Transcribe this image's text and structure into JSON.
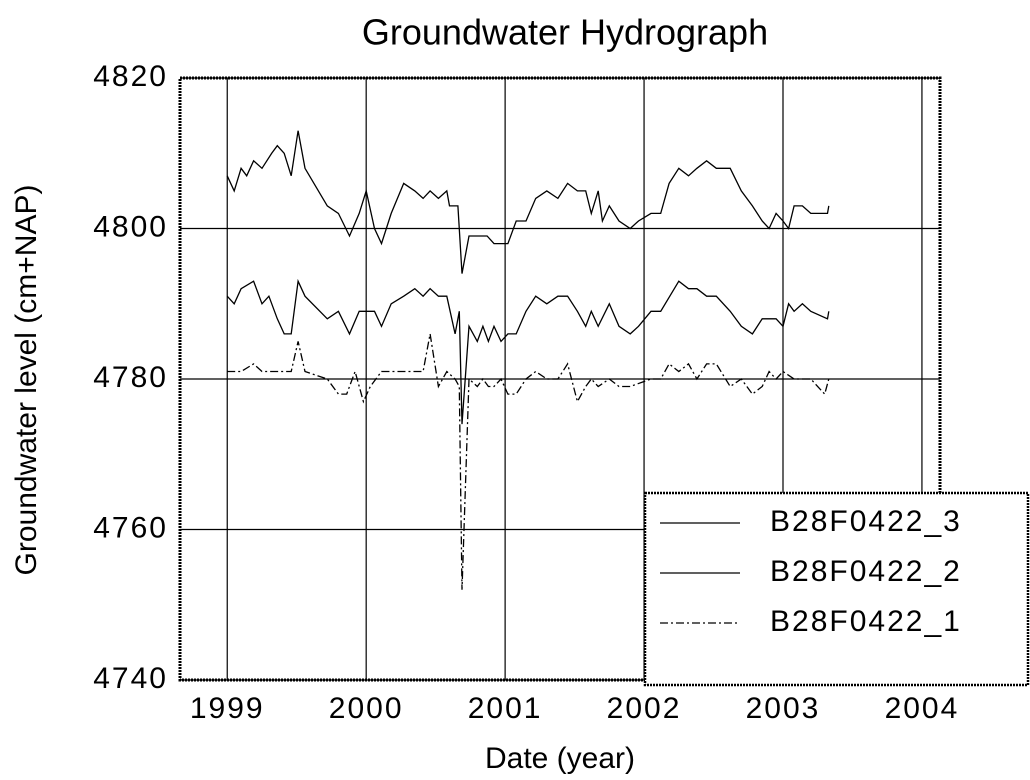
{
  "chart_data": {
    "type": "line",
    "title": "Groundwater Hydrograph",
    "xlabel": "Date (year)",
    "ylabel": "Groundwater level (cm+NAP)",
    "xlim": [
      1998.66,
      2004.13
    ],
    "xticks": [
      1999,
      2000,
      2001,
      2002,
      2003,
      2004
    ],
    "ylim": [
      4740,
      4820
    ],
    "yticks": [
      4740,
      4760,
      4780,
      4800,
      4820
    ],
    "grid": true,
    "legend": "lower right",
    "series": [
      {
        "name": "B28F0422_3",
        "color": "#000000",
        "dash": "solid",
        "x": [
          1999.0,
          1999.05,
          1999.1,
          1999.14,
          1999.19,
          1999.25,
          1999.32,
          1999.36,
          1999.41,
          1999.46,
          1999.51,
          1999.56,
          1999.72,
          1999.8,
          1999.88,
          1999.95,
          2000.0,
          2000.06,
          2000.11,
          2000.18,
          2000.27,
          2000.35,
          2000.41,
          2000.46,
          2000.52,
          2000.58,
          2000.6,
          2000.66,
          2000.69,
          2000.74,
          2000.87,
          2000.92,
          2001.02,
          2001.08,
          2001.15,
          2001.22,
          2001.3,
          2001.38,
          2001.45,
          2001.52,
          2001.58,
          2001.62,
          2001.67,
          2001.7,
          2001.75,
          2001.82,
          2001.9,
          2001.96,
          2002.05,
          2002.12,
          2002.18,
          2002.25,
          2002.32,
          2002.38,
          2002.45,
          2002.52,
          2002.62,
          2002.7,
          2002.78,
          2002.85,
          2002.9,
          2002.95,
          2003.0,
          2003.04,
          2003.08,
          2003.14,
          2003.2,
          2003.32,
          2003.33
        ],
        "values": [
          4807,
          4805,
          4808,
          4807,
          4809,
          4808,
          4810,
          4811,
          4810,
          4807,
          4813,
          4808,
          4803,
          4802,
          4799,
          4802,
          4805,
          4800,
          4798,
          4802,
          4806,
          4805,
          4804,
          4805,
          4804,
          4805,
          4803,
          4803,
          4794,
          4799,
          4799,
          4798,
          4798,
          4801,
          4801,
          4804,
          4805,
          4804,
          4806,
          4805,
          4805,
          4802,
          4805,
          4801,
          4803,
          4801,
          4800,
          4801,
          4802,
          4802,
          4806,
          4808,
          4807,
          4808,
          4809,
          4808,
          4808,
          4805,
          4803,
          4801,
          4800,
          4802,
          4801,
          4800,
          4803,
          4803,
          4802,
          4802,
          4803
        ]
      },
      {
        "name": "B28F0422_2",
        "color": "#000000",
        "dash": "solid",
        "x": [
          1999.0,
          1999.05,
          1999.1,
          1999.19,
          1999.25,
          1999.3,
          1999.36,
          1999.41,
          1999.46,
          1999.51,
          1999.56,
          1999.72,
          1999.8,
          1999.88,
          1999.95,
          2000.06,
          2000.11,
          2000.18,
          2000.27,
          2000.35,
          2000.41,
          2000.46,
          2000.52,
          2000.58,
          2000.64,
          2000.67,
          2000.69,
          2000.74,
          2000.8,
          2000.84,
          2000.88,
          2000.92,
          2000.97,
          2001.02,
          2001.08,
          2001.15,
          2001.22,
          2001.3,
          2001.38,
          2001.45,
          2001.52,
          2001.58,
          2001.62,
          2001.67,
          2001.75,
          2001.82,
          2001.9,
          2001.96,
          2002.05,
          2002.12,
          2002.25,
          2002.32,
          2002.38,
          2002.45,
          2002.52,
          2002.62,
          2002.7,
          2002.78,
          2002.85,
          2002.95,
          2003.0,
          2003.04,
          2003.08,
          2003.14,
          2003.2,
          2003.32,
          2003.33
        ],
        "values": [
          4791,
          4790,
          4792,
          4793,
          4790,
          4791,
          4788,
          4786,
          4786,
          4793,
          4791,
          4788,
          4789,
          4786,
          4789,
          4789,
          4787,
          4790,
          4791,
          4792,
          4791,
          4792,
          4791,
          4791,
          4786,
          4789,
          4774,
          4787,
          4785,
          4787,
          4785,
          4787,
          4785,
          4786,
          4786,
          4789,
          4791,
          4790,
          4791,
          4791,
          4789,
          4787,
          4789,
          4787,
          4790,
          4787,
          4786,
          4787,
          4789,
          4789,
          4793,
          4792,
          4792,
          4791,
          4791,
          4789,
          4787,
          4786,
          4788,
          4788,
          4787,
          4790,
          4789,
          4790,
          4789,
          4788,
          4789
        ]
      },
      {
        "name": "B28F0422_1",
        "color": "#000000",
        "dash": "dashdot",
        "x": [
          1999.0,
          1999.1,
          1999.19,
          1999.25,
          1999.41,
          1999.46,
          1999.51,
          1999.56,
          1999.72,
          1999.8,
          1999.86,
          1999.88,
          1999.92,
          1999.98,
          2000.03,
          2000.11,
          2000.27,
          2000.41,
          2000.46,
          2000.52,
          2000.58,
          2000.64,
          2000.67,
          2000.69,
          2000.74,
          2000.8,
          2000.84,
          2000.88,
          2000.92,
          2000.97,
          2001.02,
          2001.08,
          2001.15,
          2001.22,
          2001.3,
          2001.38,
          2001.45,
          2001.52,
          2001.58,
          2001.62,
          2001.67,
          2001.75,
          2001.82,
          2001.9,
          2002.05,
          2002.12,
          2002.18,
          2002.25,
          2002.32,
          2002.38,
          2002.45,
          2002.52,
          2002.62,
          2002.7,
          2002.78,
          2002.85,
          2002.9,
          2002.95,
          2003.0,
          2003.08,
          2003.2,
          2003.3,
          2003.33
        ],
        "values": [
          4781,
          4781,
          4782,
          4781,
          4781,
          4781,
          4785,
          4781,
          4780,
          4778,
          4778,
          4779,
          4781,
          4777,
          4779,
          4781,
          4781,
          4781,
          4786,
          4779,
          4781,
          4780,
          4779,
          4752,
          4780,
          4779,
          4780,
          4779,
          4779,
          4780,
          4778,
          4778,
          4780,
          4781,
          4780,
          4780,
          4782,
          4777,
          4779,
          4780,
          4779,
          4780,
          4779,
          4779,
          4780,
          4780,
          4782,
          4781,
          4782,
          4780,
          4782,
          4782,
          4779,
          4780,
          4778,
          4779,
          4781,
          4780,
          4781,
          4780,
          4780,
          4778,
          4780
        ]
      }
    ]
  }
}
